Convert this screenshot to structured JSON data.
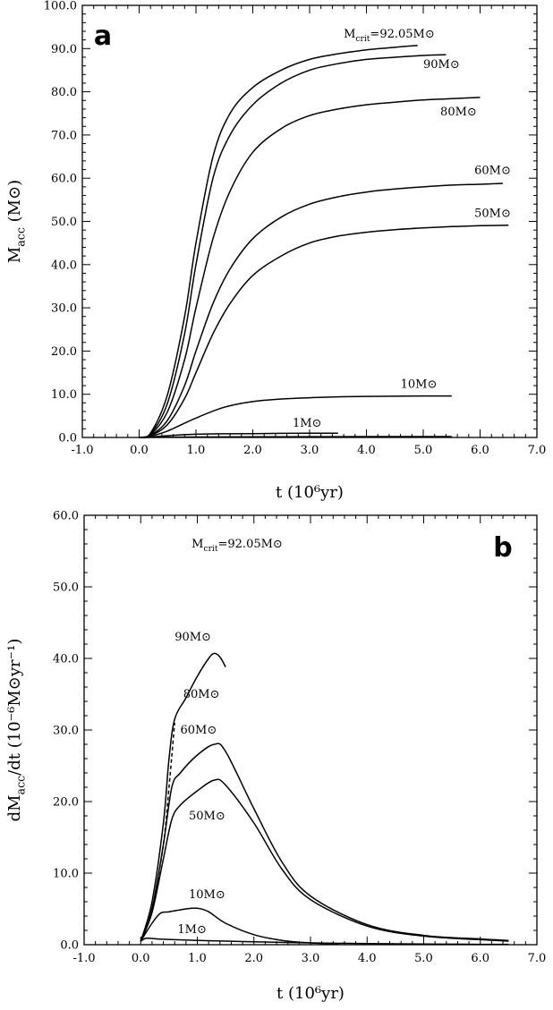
{
  "chart_data": [
    {
      "type": "line",
      "panel_label": "a",
      "annotation": "M_crit=92.05M⊙",
      "xlabel": "t (10⁶yr)",
      "ylabel": "M_acc (M⊙)",
      "xlim": [
        -1.0,
        7.0
      ],
      "ylim": [
        0.0,
        100.0
      ],
      "xticks": [
        "-1.0",
        "0.0",
        "1.0",
        "2.0",
        "3.0",
        "4.0",
        "5.0",
        "6.0",
        "7.0"
      ],
      "yticks": [
        "0.0",
        "10.0",
        "20.0",
        "30.0",
        "40.0",
        "50.0",
        "60.0",
        "70.0",
        "80.0",
        "90.0",
        "100.0"
      ],
      "series": [
        {
          "name": "M_crit=92.05M⊙",
          "x": [
            0.0,
            0.2,
            0.5,
            0.8,
            1.0,
            1.3,
            1.6,
            2.0,
            2.5,
            3.0,
            3.5,
            4.0,
            4.5,
            4.9
          ],
          "values": [
            0.0,
            1.0,
            10.0,
            28.0,
            45.0,
            65.0,
            75.0,
            81.0,
            85.0,
            87.5,
            88.8,
            89.7,
            90.3,
            90.7
          ]
        },
        {
          "name": "90M⊙",
          "x": [
            0.0,
            0.2,
            0.5,
            0.8,
            1.0,
            1.3,
            1.6,
            2.0,
            2.5,
            3.0,
            3.5,
            4.0,
            4.5,
            5.0,
            5.4
          ],
          "values": [
            0.0,
            0.8,
            8.0,
            24.0,
            40.0,
            60.0,
            70.0,
            77.0,
            82.0,
            85.0,
            86.5,
            87.5,
            88.0,
            88.4,
            88.6
          ]
        },
        {
          "name": "80M⊙",
          "x": [
            0.0,
            0.2,
            0.5,
            0.8,
            1.0,
            1.3,
            1.6,
            2.0,
            2.5,
            3.0,
            3.5,
            4.0,
            4.5,
            5.0,
            5.5,
            6.0
          ],
          "values": [
            0.0,
            0.6,
            6.0,
            18.0,
            30.0,
            46.0,
            57.0,
            66.0,
            71.5,
            74.5,
            76.0,
            77.0,
            77.6,
            78.1,
            78.4,
            78.7
          ]
        },
        {
          "name": "60M⊙",
          "x": [
            0.0,
            0.2,
            0.5,
            0.8,
            1.0,
            1.3,
            1.6,
            2.0,
            2.5,
            3.0,
            3.5,
            4.0,
            4.5,
            5.0,
            5.5,
            6.0,
            6.4
          ],
          "values": [
            0.0,
            0.5,
            4.0,
            12.0,
            20.0,
            31.0,
            39.0,
            46.0,
            51.0,
            54.0,
            55.7,
            56.8,
            57.5,
            58.0,
            58.4,
            58.6,
            58.8
          ]
        },
        {
          "name": "50M⊙",
          "x": [
            0.0,
            0.2,
            0.5,
            0.8,
            1.0,
            1.3,
            1.6,
            2.0,
            2.5,
            3.0,
            3.5,
            4.0,
            4.5,
            5.0,
            5.5,
            6.0,
            6.5
          ],
          "values": [
            0.0,
            0.4,
            3.0,
            9.0,
            15.0,
            24.0,
            31.0,
            37.5,
            42.0,
            45.0,
            46.6,
            47.5,
            48.1,
            48.5,
            48.8,
            49.0,
            49.1
          ]
        },
        {
          "name": "10M⊙",
          "x": [
            0.0,
            0.2,
            0.5,
            1.0,
            1.5,
            2.0,
            2.5,
            3.0,
            3.5,
            4.0,
            4.5,
            5.0,
            5.5
          ],
          "values": [
            0.0,
            0.3,
            1.5,
            4.5,
            7.0,
            8.3,
            8.9,
            9.2,
            9.4,
            9.5,
            9.55,
            9.6,
            9.6
          ]
        },
        {
          "name": "1M⊙",
          "x": [
            0.0,
            0.3,
            0.6,
            1.0,
            1.5,
            2.0,
            2.5,
            3.0,
            3.5
          ],
          "values": [
            0.0,
            0.2,
            0.5,
            0.75,
            0.85,
            0.9,
            0.95,
            0.98,
            1.0
          ]
        },
        {
          "name": "",
          "x": [
            0.0,
            1.0,
            2.0,
            3.0,
            4.0,
            5.0,
            5.5
          ],
          "values": [
            0.0,
            0.1,
            0.15,
            0.18,
            0.2,
            0.2,
            0.2
          ]
        }
      ],
      "labels": [
        {
          "text": "M_crit=92.05M⊙",
          "x": 3.6,
          "y": 92.5
        },
        {
          "text": "90M⊙",
          "x": 5.0,
          "y": 85.5
        },
        {
          "text": "80M⊙",
          "x": 5.3,
          "y": 74.5
        },
        {
          "text": "60M⊙",
          "x": 5.9,
          "y": 61.0
        },
        {
          "text": "50M⊙",
          "x": 5.9,
          "y": 51.0
        },
        {
          "text": "10M⊙",
          "x": 4.6,
          "y": 11.5
        },
        {
          "text": "1M⊙",
          "x": 2.7,
          "y": 2.5
        }
      ]
    },
    {
      "type": "line",
      "panel_label": "b",
      "annotation": "M_crit=92.05M⊙",
      "xlabel": "t (10⁶yr)",
      "ylabel": "dM_acc/dt (10⁻⁶M⊙yr⁻¹)",
      "xlim": [
        -1.0,
        7.0
      ],
      "ylim": [
        0.0,
        60.0
      ],
      "xticks": [
        "-1.0",
        "0.0",
        "1.0",
        "2.0",
        "3.0",
        "4.0",
        "5.0",
        "6.0",
        "7.0"
      ],
      "yticks": [
        "0.0",
        "10.0",
        "20.0",
        "30.0",
        "40.0",
        "50.0",
        "60.0"
      ],
      "series": [
        {
          "name": "90M⊙",
          "style": "thin",
          "x": [
            0.0,
            0.2,
            0.4,
            0.5,
            0.6,
            0.8,
            1.0,
            1.2,
            1.3,
            1.4,
            1.5
          ],
          "values": [
            0.5,
            6.0,
            17.0,
            26.0,
            31.5,
            34.5,
            37.5,
            40.0,
            40.7,
            40.2,
            38.8
          ]
        },
        {
          "name": "80M⊙",
          "style": "dashed",
          "x": [
            0.0,
            0.2,
            0.4,
            0.5,
            0.6
          ],
          "values": [
            0.5,
            5.0,
            14.0,
            22.0,
            31.0
          ]
        },
        {
          "name": "60M⊙",
          "x": [
            0.0,
            0.2,
            0.4,
            0.55,
            0.7,
            1.0,
            1.3,
            1.5,
            2.0,
            2.5,
            3.0,
            4.0,
            5.0,
            6.0,
            6.5
          ],
          "values": [
            0.5,
            5.0,
            14.0,
            22.0,
            24.0,
            26.5,
            28.0,
            27.0,
            19.0,
            11.5,
            6.8,
            2.8,
            1.3,
            0.8,
            0.6
          ]
        },
        {
          "name": "50M⊙",
          "x": [
            0.0,
            0.2,
            0.4,
            0.55,
            0.7,
            1.0,
            1.3,
            1.5,
            2.0,
            2.5,
            3.0,
            4.0,
            5.0,
            6.0,
            6.5
          ],
          "values": [
            0.5,
            4.5,
            12.0,
            17.5,
            19.5,
            21.5,
            23.0,
            22.3,
            17.0,
            10.5,
            6.3,
            2.6,
            1.2,
            0.7,
            0.5
          ]
        },
        {
          "name": "10M⊙",
          "x": [
            0.0,
            0.2,
            0.35,
            0.5,
            0.8,
            1.0,
            1.2,
            1.5,
            2.0,
            2.5,
            3.0,
            3.5
          ],
          "values": [
            0.5,
            3.0,
            4.4,
            4.6,
            5.0,
            5.1,
            4.6,
            3.0,
            1.4,
            0.6,
            0.25,
            0.1
          ]
        },
        {
          "name": "1M⊙",
          "x": [
            0.0,
            0.1,
            0.3,
            0.6,
            1.0,
            1.5,
            2.0,
            3.0,
            4.0,
            5.0,
            6.0,
            6.5
          ],
          "values": [
            0.5,
            0.9,
            0.8,
            0.7,
            0.6,
            0.5,
            0.4,
            0.25,
            0.15,
            0.1,
            0.05,
            0.05
          ]
        }
      ],
      "labels": [
        {
          "text": "90M⊙",
          "x": 0.6,
          "y": 42.5
        },
        {
          "text": "80M⊙",
          "x": 0.75,
          "y": 34.5
        },
        {
          "text": "60M⊙",
          "x": 0.7,
          "y": 29.5
        },
        {
          "text": "50M⊙",
          "x": 0.85,
          "y": 17.5
        },
        {
          "text": "10M⊙",
          "x": 0.85,
          "y": 6.5
        },
        {
          "text": "1M⊙",
          "x": 0.65,
          "y": 1.6
        }
      ]
    }
  ]
}
